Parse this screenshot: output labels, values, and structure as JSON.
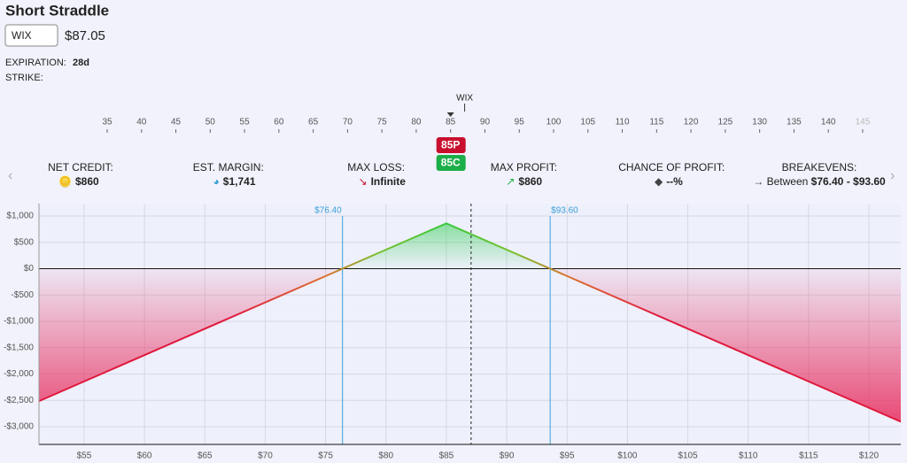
{
  "header": {
    "title": "Short Straddle",
    "symbol": "WIX",
    "price": "$87.05",
    "expiration_label": "EXPIRATION:",
    "expiration": "28d",
    "strike_label": "STRIKE:"
  },
  "strike_scale": {
    "label": "WIX",
    "ticks": [
      35,
      40,
      45,
      50,
      55,
      60,
      65,
      70,
      75,
      80,
      85,
      90,
      95,
      100,
      105,
      110,
      115,
      120,
      125,
      130,
      135,
      140,
      145
    ],
    "strike": 85,
    "put": "85P",
    "call": "85C"
  },
  "stats": [
    {
      "label": "NET CREDIT:",
      "value": "$860"
    },
    {
      "label": "EST. MARGIN:",
      "value": "$1,741"
    },
    {
      "label": "MAX LOSS:",
      "value": "Infinite"
    },
    {
      "label": "MAX PROFIT:",
      "value": "$860"
    },
    {
      "label": "CHANCE OF PROFIT:",
      "value": "--%"
    },
    {
      "label": "BREAKEVENS:",
      "prefix": "Between",
      "value": "$76.40 - $93.60"
    }
  ],
  "chart_data": {
    "type": "line",
    "x": [
      51.26,
      76.4,
      85,
      93.6,
      122.64
    ],
    "values": [
      -2514,
      0,
      860,
      0,
      -2904
    ],
    "spot": 87.05,
    "breakevens": [
      {
        "value": 76.4,
        "label": "$76.40"
      },
      {
        "value": 93.6,
        "label": "$93.60"
      }
    ],
    "xlim": [
      51.26,
      122.64
    ],
    "ylim": [
      -3335,
      1235
    ],
    "xticks": [
      {
        "value": 55,
        "label": "$55"
      },
      {
        "value": 60,
        "label": "$60"
      },
      {
        "value": 65,
        "label": "$65"
      },
      {
        "value": 70,
        "label": "$70"
      },
      {
        "value": 75,
        "label": "$75"
      },
      {
        "value": 80,
        "label": "$80"
      },
      {
        "value": 85,
        "label": "$85"
      },
      {
        "value": 90,
        "label": "$90"
      },
      {
        "value": 95,
        "label": "$95"
      },
      {
        "value": 100,
        "label": "$100"
      },
      {
        "value": 105,
        "label": "$105"
      },
      {
        "value": 110,
        "label": "$110"
      },
      {
        "value": 115,
        "label": "$115"
      },
      {
        "value": 120,
        "label": "$120"
      }
    ],
    "yticks": [
      {
        "value": 1000,
        "label": "$1,000"
      },
      {
        "value": 500,
        "label": "$500"
      },
      {
        "value": 0,
        "label": "$0"
      },
      {
        "value": -500,
        "label": "-$500"
      },
      {
        "value": -1000,
        "label": "-$1,000"
      },
      {
        "value": -1500,
        "label": "-$1,500"
      },
      {
        "value": -2000,
        "label": "-$2,000"
      },
      {
        "value": -2500,
        "label": "-$2,500"
      },
      {
        "value": -3000,
        "label": "-$3,000"
      }
    ],
    "grid": true
  }
}
